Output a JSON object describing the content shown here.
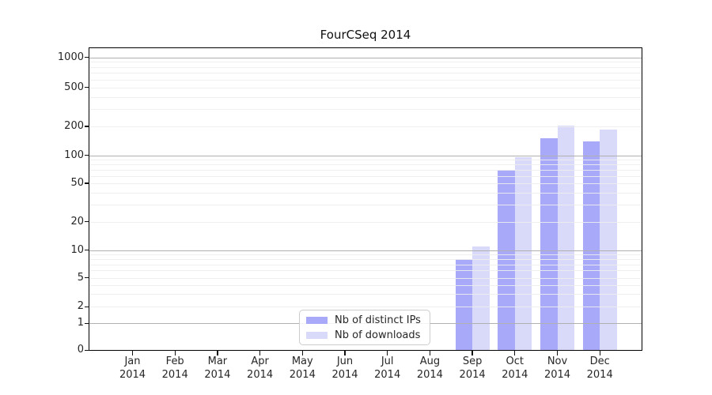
{
  "chart_data": {
    "type": "bar",
    "title": "FourCSeq 2014",
    "categories": [
      "Jan 2014",
      "Feb 2014",
      "Mar 2014",
      "Apr 2014",
      "May 2014",
      "Jun 2014",
      "Jul 2014",
      "Aug 2014",
      "Sep 2014",
      "Oct 2014",
      "Nov 2014",
      "Dec 2014"
    ],
    "series": [
      {
        "name": "Nb of distinct IPs",
        "color": "#a9a9fa",
        "values": [
          0,
          0,
          0,
          0,
          0,
          0,
          0,
          0,
          8,
          70,
          150,
          140
        ]
      },
      {
        "name": "Nb of downloads",
        "color": "#d9d9fa",
        "values": [
          0,
          0,
          0,
          0,
          0,
          0,
          0,
          0,
          11,
          95,
          205,
          185
        ]
      }
    ],
    "yscale": "log-like (0,1,2,5,10,20,50,100,200,500,1000)",
    "y_tick_values": [
      0,
      1,
      2,
      5,
      10,
      20,
      50,
      100,
      200,
      500,
      1000
    ],
    "ylim": [
      0,
      1200
    ],
    "xlabel": "",
    "ylabel": "",
    "grid": "on",
    "legend_position": "lower-center",
    "colors": {
      "major_grid": "#b0b0b0",
      "minor_grid": "#ededed",
      "spine": "#000000",
      "text": "#262626"
    }
  }
}
